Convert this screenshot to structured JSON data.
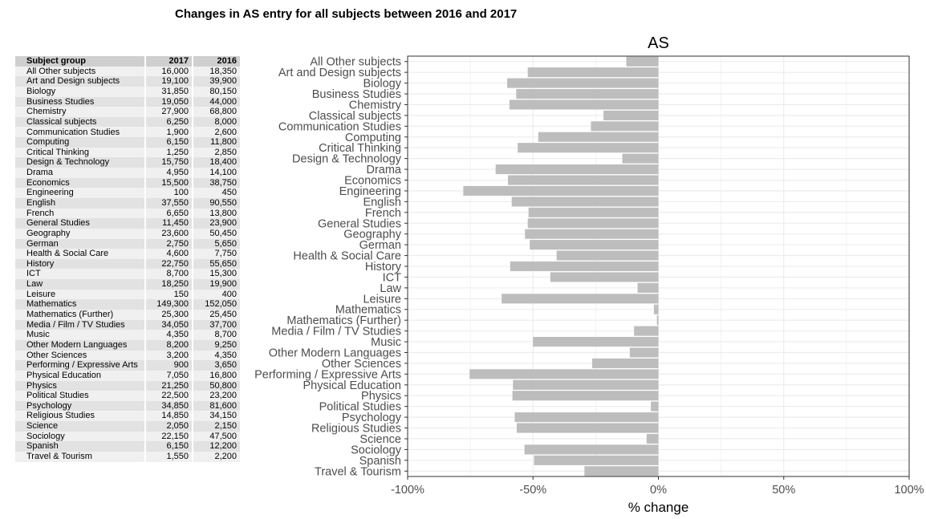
{
  "title": "Changes in AS entry for all subjects between 2016 and 2017",
  "table": {
    "headers": [
      "Subject group",
      "2017",
      "2016"
    ],
    "rows": [
      [
        "All Other subjects",
        "16,000",
        "18,350"
      ],
      [
        "Art and Design subjects",
        "19,100",
        "39,900"
      ],
      [
        "Biology",
        "31,850",
        "80,150"
      ],
      [
        "Business Studies",
        "19,050",
        "44,000"
      ],
      [
        "Chemistry",
        "27,900",
        "68,800"
      ],
      [
        "Classical subjects",
        "6,250",
        "8,000"
      ],
      [
        "Communication Studies",
        "1,900",
        "2,600"
      ],
      [
        "Computing",
        "6,150",
        "11,800"
      ],
      [
        "Critical Thinking",
        "1,250",
        "2,850"
      ],
      [
        "Design & Technology",
        "15,750",
        "18,400"
      ],
      [
        "Drama",
        "4,950",
        "14,100"
      ],
      [
        "Economics",
        "15,500",
        "38,750"
      ],
      [
        "Engineering",
        "100",
        "450"
      ],
      [
        "English",
        "37,550",
        "90,550"
      ],
      [
        "French",
        "6,650",
        "13,800"
      ],
      [
        "General Studies",
        "11,450",
        "23,900"
      ],
      [
        "Geography",
        "23,600",
        "50,450"
      ],
      [
        "German",
        "2,750",
        "5,650"
      ],
      [
        "Health & Social Care",
        "4,600",
        "7,750"
      ],
      [
        "History",
        "22,750",
        "55,650"
      ],
      [
        "ICT",
        "8,700",
        "15,300"
      ],
      [
        "Law",
        "18,250",
        "19,900"
      ],
      [
        "Leisure",
        "150",
        "400"
      ],
      [
        "Mathematics",
        "149,300",
        "152,050"
      ],
      [
        "Mathematics (Further)",
        "25,300",
        "25,450"
      ],
      [
        "Media / Film / TV Studies",
        "34,050",
        "37,700"
      ],
      [
        "Music",
        "4,350",
        "8,700"
      ],
      [
        "Other Modern Languages",
        "8,200",
        "9,250"
      ],
      [
        "Other Sciences",
        "3,200",
        "4,350"
      ],
      [
        "Performing / Expressive Arts",
        "900",
        "3,650"
      ],
      [
        "Physical Education",
        "7,050",
        "16,800"
      ],
      [
        "Physics",
        "21,250",
        "50,800"
      ],
      [
        "Political Studies",
        "22,500",
        "23,200"
      ],
      [
        "Psychology",
        "34,850",
        "81,600"
      ],
      [
        "Religious Studies",
        "14,850",
        "34,150"
      ],
      [
        "Science",
        "2,050",
        "2,150"
      ],
      [
        "Sociology",
        "22,150",
        "47,500"
      ],
      [
        "Spanish",
        "6,150",
        "12,200"
      ],
      [
        "Travel & Tourism",
        "1,550",
        "2,200"
      ]
    ]
  },
  "chart_data": {
    "type": "bar",
    "orientation": "horizontal",
    "title": "AS",
    "xlabel": "% change",
    "ylabel": "",
    "xlim": [
      -100,
      100
    ],
    "xticks": [
      -100,
      -50,
      0,
      50,
      100
    ],
    "xtick_labels": [
      "-100%",
      "-50%",
      "0%",
      "50%",
      "100%"
    ],
    "grid": true,
    "categories": [
      "All Other subjects",
      "Art and Design subjects",
      "Biology",
      "Business Studies",
      "Chemistry",
      "Classical subjects",
      "Communication Studies",
      "Computing",
      "Critical Thinking",
      "Design & Technology",
      "Drama",
      "Economics",
      "Engineering",
      "English",
      "French",
      "General Studies",
      "Geography",
      "German",
      "Health & Social Care",
      "History",
      "ICT",
      "Law",
      "Leisure",
      "Mathematics",
      "Mathematics (Further)",
      "Media / Film / TV Studies",
      "Music",
      "Other Modern Languages",
      "Other Sciences",
      "Performing / Expressive Arts",
      "Physical Education",
      "Physics",
      "Political Studies",
      "Psychology",
      "Religious Studies",
      "Science",
      "Sociology",
      "Spanish",
      "Travel & Tourism"
    ],
    "values": [
      -12.8,
      -52.1,
      -60.3,
      -56.7,
      -59.4,
      -21.9,
      -26.9,
      -47.9,
      -56.1,
      -14.4,
      -64.9,
      -60.0,
      -77.8,
      -58.5,
      -51.8,
      -52.1,
      -53.2,
      -51.3,
      -40.6,
      -59.1,
      -43.1,
      -8.3,
      -62.5,
      -1.8,
      -0.6,
      -9.7,
      -50.0,
      -11.4,
      -26.4,
      -75.3,
      -58.0,
      -58.2,
      -3.0,
      -57.3,
      -56.5,
      -4.7,
      -53.4,
      -49.6,
      -29.5
    ],
    "bar_color": "#bdbdbd",
    "panel_background": "#ffffff",
    "gridline_color": "#ebebeb"
  }
}
